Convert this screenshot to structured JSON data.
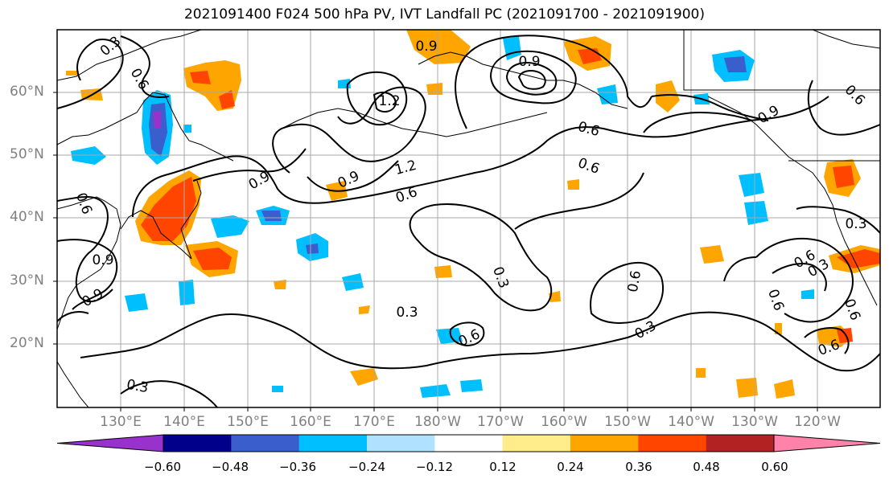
{
  "title": "2021091400 F024 500 hPa PV, IVT Landfall PC (2021091700 - 2021091900)",
  "map": {
    "lat_labels": [
      "60°N",
      "50°N",
      "40°N",
      "30°N",
      "20°N"
    ],
    "lon_labels": [
      "130°E",
      "140°E",
      "150°E",
      "160°E",
      "170°E",
      "180°W",
      "170°W",
      "160°W",
      "150°W",
      "140°W",
      "130°W",
      "120°W"
    ],
    "contour_labels": [
      "0.3",
      "0.6",
      "0.9",
      "1.2",
      "0.9",
      "1.2",
      "0.9",
      "0.9",
      "0.6",
      "0.6",
      "0.9",
      "0.6",
      "0.6",
      "0.9",
      "0.6",
      "0.3",
      "0.3",
      "0.6",
      "0.3",
      "0.6",
      "0.3",
      "0.6",
      "0.6",
      "0.3",
      "0.6",
      "0.6",
      "0.9",
      "0.3"
    ]
  },
  "colorbar": {
    "colors": [
      "#9932cc",
      "#00008b",
      "#3a5fcd",
      "#00bfff",
      "#b0e2ff",
      "#ffffff",
      "#ffec8b",
      "#ffa500",
      "#ff4500",
      "#b22222",
      "#ff82ab"
    ],
    "tick_labels": [
      "−0.60",
      "−0.48",
      "−0.36",
      "−0.24",
      "−0.12",
      "0.12",
      "0.24",
      "0.36",
      "0.48",
      "0.60"
    ]
  }
}
